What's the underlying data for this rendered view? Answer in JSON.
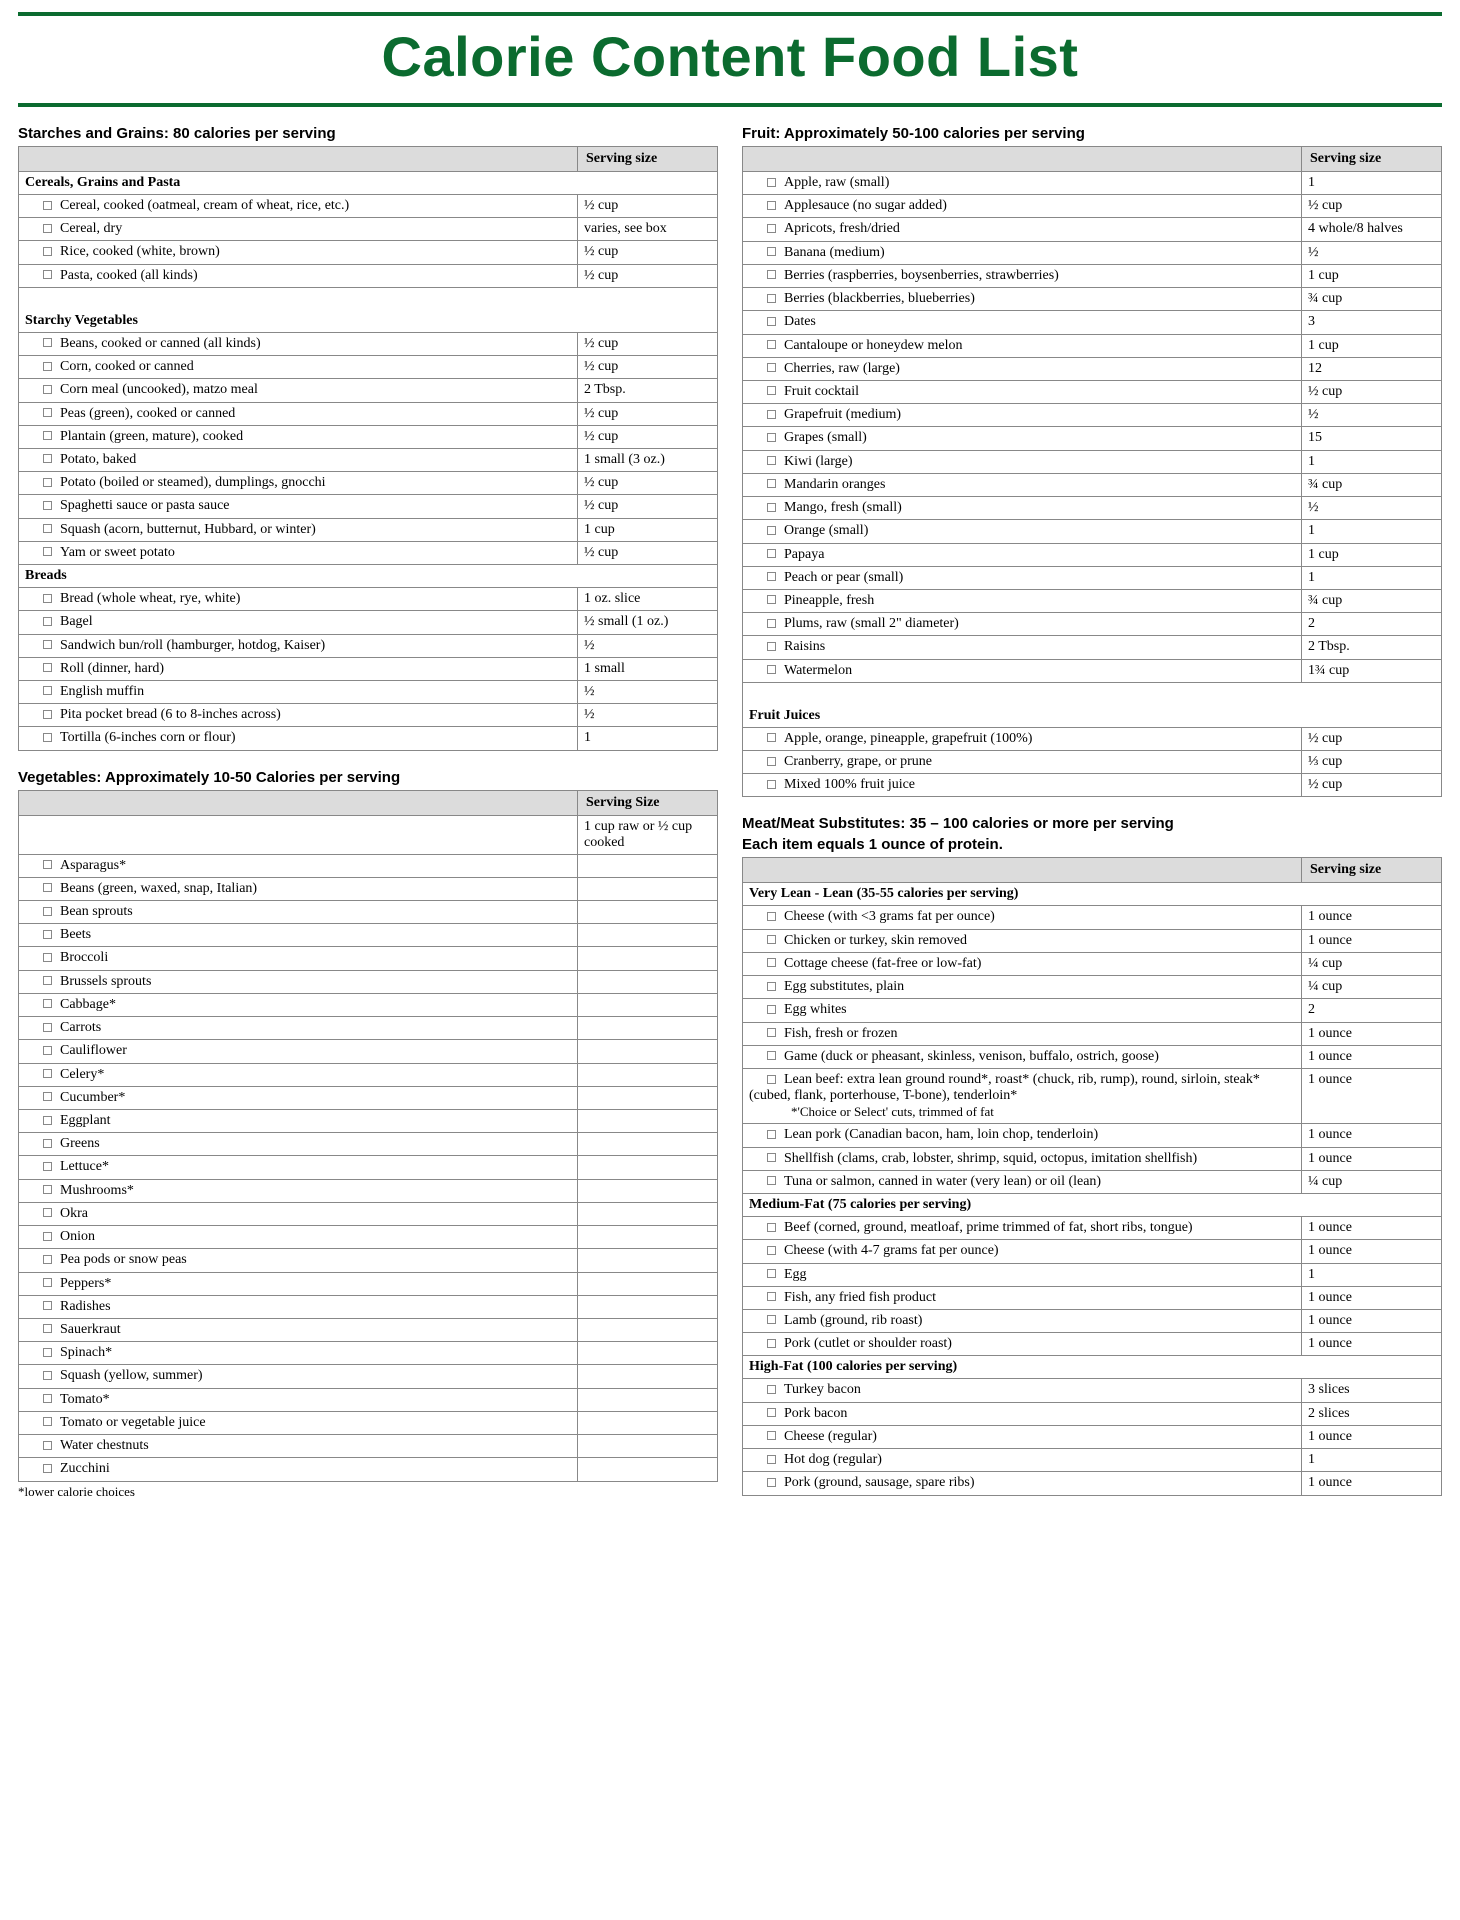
{
  "title": "Calorie Content Food List",
  "servingHeader": "Serving size",
  "servingHeader2": "Serving Size",
  "footnote": "*lower calorie choices",
  "left": {
    "starches": {
      "heading": "Starches and Grains: 80 calories per serving",
      "groups": [
        {
          "name": "Cereals, Grains and Pasta",
          "items": [
            {
              "name": "Cereal, cooked (oatmeal, cream of wheat, rice, etc.)",
              "serving": "½ cup"
            },
            {
              "name": "Cereal, dry",
              "serving": "varies, see box"
            },
            {
              "name": "Rice, cooked (white, brown)",
              "serving": "½ cup"
            },
            {
              "name": "Pasta, cooked (all kinds)",
              "serving": "½ cup"
            }
          ]
        },
        {
          "name": "Starchy Vegetables",
          "padBefore": true,
          "items": [
            {
              "name": "Beans, cooked or canned (all kinds)",
              "serving": "½ cup"
            },
            {
              "name": "Corn, cooked or canned",
              "serving": "½ cup"
            },
            {
              "name": "Corn meal (uncooked), matzo meal",
              "serving": "2 Tbsp."
            },
            {
              "name": "Peas (green), cooked or canned",
              "serving": "½ cup"
            },
            {
              "name": "Plantain (green, mature), cooked",
              "serving": "½ cup"
            },
            {
              "name": "Potato, baked",
              "serving": "1 small (3 oz.)"
            },
            {
              "name": "Potato (boiled or steamed), dumplings, gnocchi",
              "serving": "½ cup"
            },
            {
              "name": "Spaghetti sauce or pasta sauce",
              "serving": "½ cup"
            },
            {
              "name": "Squash (acorn, butternut, Hubbard, or winter)",
              "serving": "1 cup"
            },
            {
              "name": "Yam or sweet potato",
              "serving": "½ cup"
            }
          ]
        },
        {
          "name": "Breads",
          "items": [
            {
              "name": "Bread (whole wheat, rye, white)",
              "serving": "1 oz. slice"
            },
            {
              "name": "Bagel",
              "serving": "½ small  (1 oz.)"
            },
            {
              "name": "Sandwich bun/roll  (hamburger, hotdog, Kaiser)",
              "serving": "½"
            },
            {
              "name": "Roll (dinner, hard)",
              "serving": "1 small"
            },
            {
              "name": "English muffin",
              "serving": "½"
            },
            {
              "name": "Pita pocket bread (6 to 8-inches across)",
              "serving": "½"
            },
            {
              "name": "Tortilla (6-inches corn or flour)",
              "serving": "1"
            }
          ]
        }
      ]
    },
    "vegetables": {
      "heading": "Vegetables: Approximately 10-50 Calories per serving",
      "topNote": "1 cup raw or ½ cup cooked",
      "items": [
        "Asparagus*",
        "Beans (green, waxed, snap, Italian)",
        "Bean sprouts",
        "Beets",
        "Broccoli",
        "Brussels sprouts",
        "Cabbage*",
        "Carrots",
        "Cauliflower",
        "Celery*",
        "Cucumber*",
        "Eggplant",
        "Greens",
        "Lettuce*",
        "Mushrooms*",
        "Okra",
        "Onion",
        "Pea pods or snow peas",
        "Peppers*",
        "Radishes",
        "Sauerkraut",
        "Spinach*",
        "Squash (yellow, summer)",
        "Tomato*",
        "Tomato or vegetable juice",
        "Water chestnuts",
        "Zucchini"
      ]
    }
  },
  "right": {
    "fruit": {
      "heading": "Fruit: Approximately 50-100 calories per serving",
      "items": [
        {
          "name": "Apple, raw (small)",
          "serving": "1"
        },
        {
          "name": "Applesauce (no sugar added)",
          "serving": "½ cup"
        },
        {
          "name": "Apricots, fresh/dried",
          "serving": "4 whole/8 halves"
        },
        {
          "name": "Banana (medium)",
          "serving": "½"
        },
        {
          "name": "Berries (raspberries, boysenberries, strawberries)",
          "serving": "1 cup"
        },
        {
          "name": "Berries (blackberries, blueberries)",
          "serving": "¾ cup"
        },
        {
          "name": "Dates",
          "serving": "3"
        },
        {
          "name": "Cantaloupe or honeydew melon",
          "serving": "1 cup"
        },
        {
          "name": "Cherries, raw (large)",
          "serving": "12"
        },
        {
          "name": "Fruit cocktail",
          "serving": "½ cup"
        },
        {
          "name": "Grapefruit (medium)",
          "serving": "½"
        },
        {
          "name": "Grapes (small)",
          "serving": "15"
        },
        {
          "name": "Kiwi (large)",
          "serving": "1"
        },
        {
          "name": "Mandarin oranges",
          "serving": "¾ cup"
        },
        {
          "name": "Mango, fresh (small)",
          "serving": "½"
        },
        {
          "name": "Orange (small)",
          "serving": "1"
        },
        {
          "name": "Papaya",
          "serving": "1 cup"
        },
        {
          "name": "Peach or pear (small)",
          "serving": "1"
        },
        {
          "name": "Pineapple, fresh",
          "serving": "¾ cup"
        },
        {
          "name": "Plums, raw (small 2\" diameter)",
          "serving": "2"
        },
        {
          "name": "Raisins",
          "serving": "2 Tbsp."
        },
        {
          "name": "Watermelon",
          "serving": "1¾ cup"
        }
      ],
      "juices": {
        "name": "Fruit Juices",
        "items": [
          {
            "name": "Apple, orange, pineapple, grapefruit (100%)",
            "serving": "½ cup"
          },
          {
            "name": "Cranberry, grape, or prune",
            "serving": "⅓ cup"
          },
          {
            "name": "Mixed 100% fruit juice",
            "serving": "½ cup"
          }
        ]
      }
    },
    "meat": {
      "heading": "Meat/Meat Substitutes: 35 – 100 calories or more per serving",
      "subheading": "Each item equals 1 ounce of protein.",
      "groups": [
        {
          "name": "Very Lean - Lean (35-55 calories per serving)",
          "items": [
            {
              "name": "Cheese (with <3 grams fat per ounce)",
              "serving": "1 ounce"
            },
            {
              "name": "Chicken or turkey, skin removed",
              "serving": "1 ounce"
            },
            {
              "name": "Cottage cheese (fat-free or low-fat)",
              "serving": "¼ cup"
            },
            {
              "name": "Egg substitutes, plain",
              "serving": "¼ cup"
            },
            {
              "name": "Egg whites",
              "serving": "2"
            },
            {
              "name": "Fish, fresh or frozen",
              "serving": "1 ounce"
            },
            {
              "name": "Game (duck or pheasant, skinless, venison, buffalo, ostrich, goose)",
              "serving": "1 ounce"
            },
            {
              "name": "Lean beef: extra lean ground round*, roast* (chuck, rib, rump), round, sirloin, steak* (cubed, flank, porterhouse, T-bone), tenderloin*",
              "note": "*'Choice or Select' cuts, trimmed of fat",
              "serving": "1 ounce"
            },
            {
              "name": "Lean pork (Canadian bacon, ham, loin chop, tenderloin)",
              "serving": "1 ounce"
            },
            {
              "name": "Shellfish (clams, crab, lobster, shrimp, squid, octopus, imitation shellfish)",
              "serving": "1 ounce"
            },
            {
              "name": "Tuna or salmon, canned in water (very lean) or oil (lean)",
              "serving": "¼ cup"
            }
          ]
        },
        {
          "name": "Medium-Fat (75 calories per serving)",
          "items": [
            {
              "name": "Beef (corned, ground, meatloaf, prime trimmed of fat, short ribs, tongue)",
              "serving": "1 ounce"
            },
            {
              "name": "Cheese (with 4-7 grams fat per ounce)",
              "serving": "1 ounce"
            },
            {
              "name": "Egg",
              "serving": "1"
            },
            {
              "name": "Fish, any fried fish product",
              "serving": "1 ounce"
            },
            {
              "name": "Lamb (ground, rib roast)",
              "serving": "1 ounce"
            },
            {
              "name": "Pork (cutlet or shoulder roast)",
              "serving": "1 ounce"
            }
          ]
        },
        {
          "name": "High-Fat (100 calories per serving)",
          "items": [
            {
              "name": "Turkey bacon",
              "serving": "3 slices"
            },
            {
              "name": "Pork bacon",
              "serving": "2 slices"
            },
            {
              "name": "Cheese (regular)",
              "serving": "1 ounce"
            },
            {
              "name": "Hot dog (regular)",
              "serving": "1"
            },
            {
              "name": "Pork (ground, sausage, spare ribs)",
              "serving": "1 ounce"
            }
          ]
        }
      ]
    }
  }
}
